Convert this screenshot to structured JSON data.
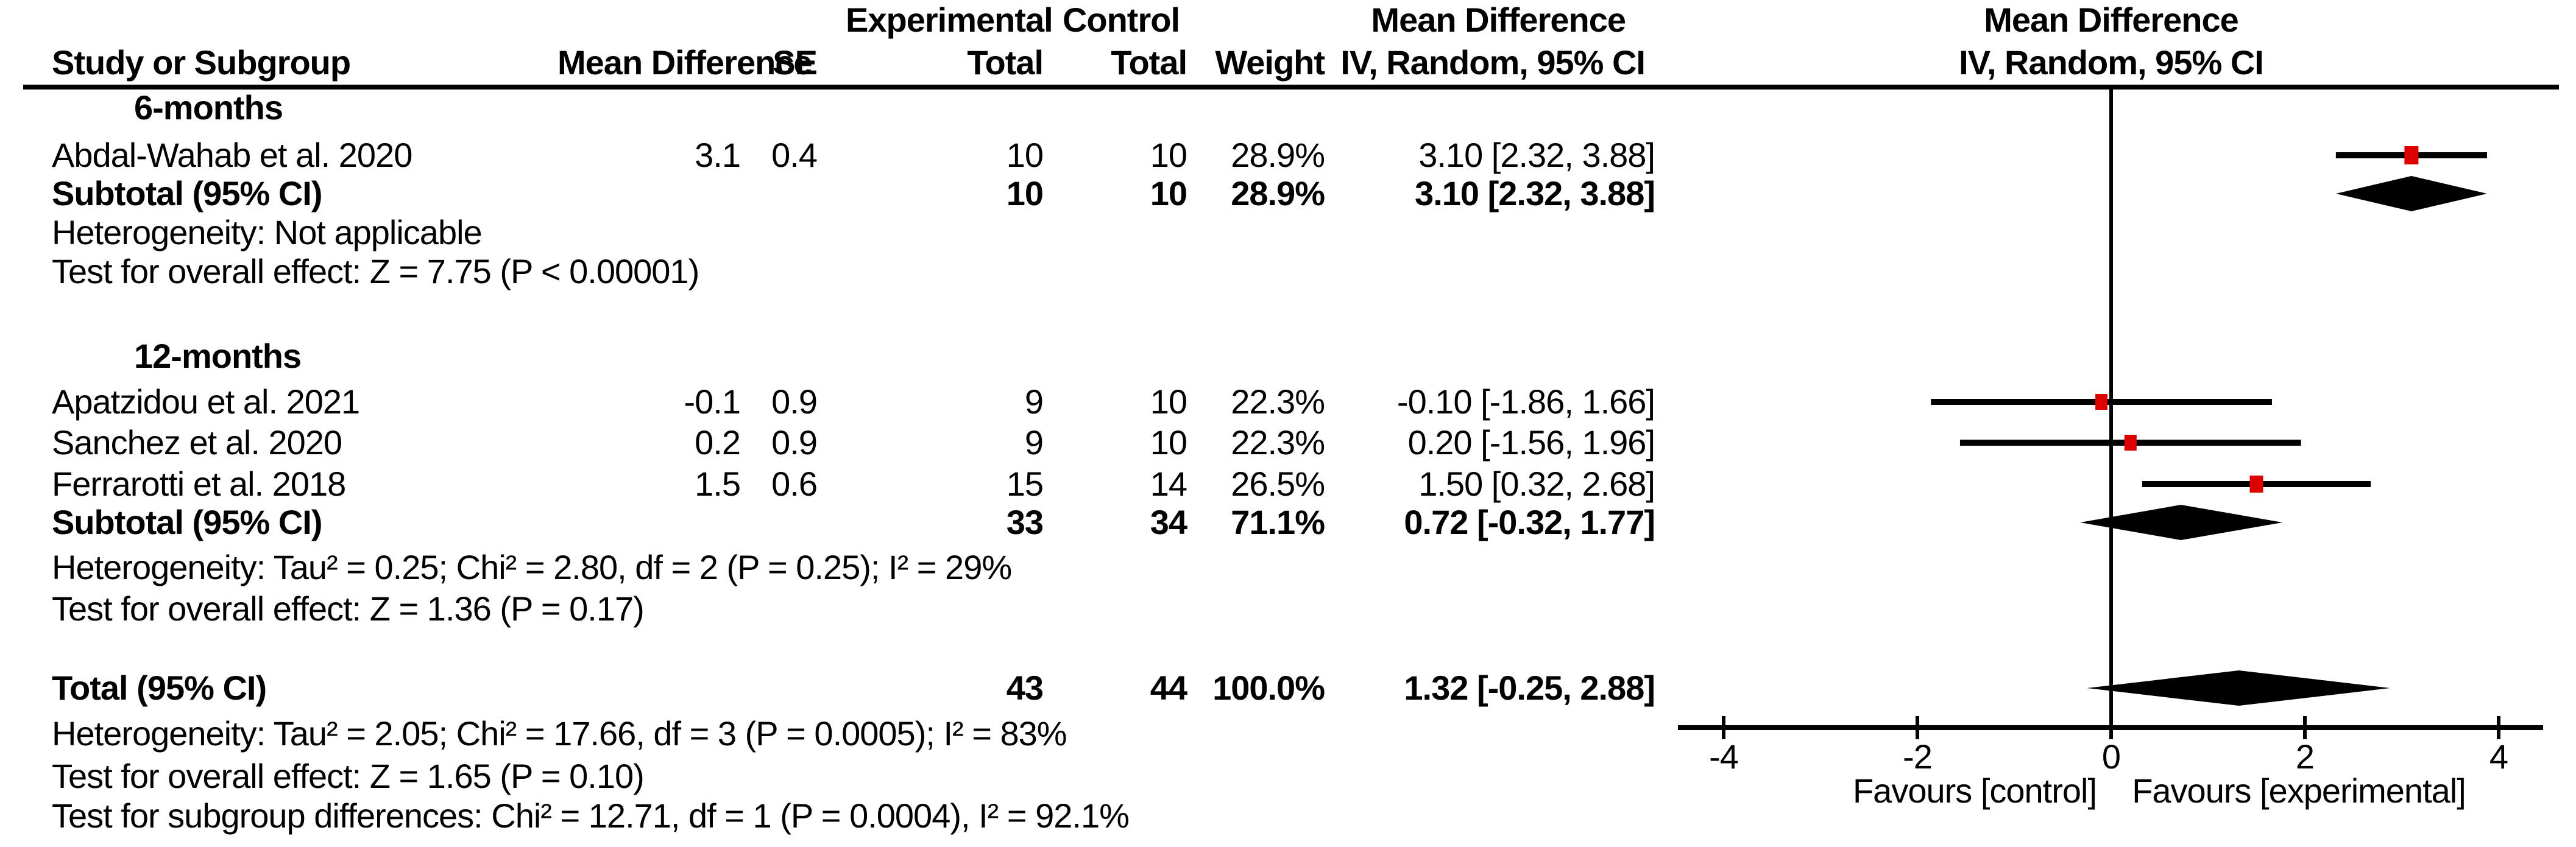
{
  "colors": {
    "text": "#000000",
    "marker": "#dd0000",
    "diamond": "#000000",
    "line": "#000000"
  },
  "columns": {
    "study": "Study or Subgroup",
    "md": "Mean Difference",
    "se": "SE",
    "group_experimental": "Experimental",
    "group_control": "Control",
    "total": "Total",
    "weight": "Weight",
    "ci": "IV, Random, 95% CI",
    "ci_group": "Mean Difference"
  },
  "plot_header": {
    "line1": "Mean Difference",
    "line2": "IV, Random, 95% CI"
  },
  "chart_data": {
    "type": "forest",
    "effect_measure": "Mean Difference",
    "model": "IV, Random, 95% CI",
    "axis": {
      "min": -4,
      "max": 4,
      "ticks": [
        -4,
        -2,
        0,
        2,
        4
      ],
      "zero_line": 0,
      "label_left": "Favours [control]",
      "label_right": "Favours [experimental]"
    },
    "sections": [
      {
        "label": "6-months",
        "rows": [
          {
            "study": "Abdal-Wahab et al. 2020",
            "md_text": "3.1",
            "se_text": "0.4",
            "exp_text": "10",
            "ctrl_text": "10",
            "weight_text": "28.9%",
            "ci_text": "3.10 [2.32, 3.88]",
            "estimate": 3.1,
            "lo": 2.32,
            "hi": 3.88,
            "weight_pct": 28.9
          }
        ],
        "subtotal": {
          "label": "Subtotal (95% CI)",
          "exp_text": "10",
          "ctrl_text": "10",
          "weight_text": "28.9%",
          "ci_text": "3.10 [2.32, 3.88]",
          "estimate": 3.1,
          "lo": 2.32,
          "hi": 3.88
        },
        "heterogeneity": "Heterogeneity: Not applicable",
        "overall_effect": "Test for overall effect: Z = 7.75 (P < 0.00001)"
      },
      {
        "label": "12-months",
        "rows": [
          {
            "study": "Apatzidou et al. 2021",
            "md_text": "-0.1",
            "se_text": "0.9",
            "exp_text": "9",
            "ctrl_text": "10",
            "weight_text": "22.3%",
            "ci_text": "-0.10 [-1.86, 1.66]",
            "estimate": -0.1,
            "lo": -1.86,
            "hi": 1.66,
            "weight_pct": 22.3
          },
          {
            "study": "Sanchez et al. 2020",
            "md_text": "0.2",
            "se_text": "0.9",
            "exp_text": "9",
            "ctrl_text": "10",
            "weight_text": "22.3%",
            "ci_text": "0.20 [-1.56, 1.96]",
            "estimate": 0.2,
            "lo": -1.56,
            "hi": 1.96,
            "weight_pct": 22.3
          },
          {
            "study": "Ferrarotti et al. 2018",
            "md_text": "1.5",
            "se_text": "0.6",
            "exp_text": "15",
            "ctrl_text": "14",
            "weight_text": "26.5%",
            "ci_text": "1.50 [0.32, 2.68]",
            "estimate": 1.5,
            "lo": 0.32,
            "hi": 2.68,
            "weight_pct": 26.5
          }
        ],
        "subtotal": {
          "label": "Subtotal (95% CI)",
          "exp_text": "33",
          "ctrl_text": "34",
          "weight_text": "71.1%",
          "ci_text": "0.72 [-0.32, 1.77]",
          "estimate": 0.72,
          "lo": -0.32,
          "hi": 1.77
        },
        "heterogeneity": "Heterogeneity: Tau² = 0.25; Chi² = 2.80, df = 2 (P = 0.25); I² = 29%",
        "overall_effect": "Test for overall effect: Z = 1.36 (P = 0.17)"
      }
    ],
    "total": {
      "label": "Total (95% CI)",
      "exp_text": "43",
      "ctrl_text": "44",
      "weight_text": "100.0%",
      "ci_text": "1.32 [-0.25, 2.88]",
      "estimate": 1.32,
      "lo": -0.25,
      "hi": 2.88,
      "heterogeneity": "Heterogeneity: Tau² = 2.05; Chi² = 17.66, df = 3 (P = 0.0005); I² = 83%",
      "overall_effect": "Test for overall effect: Z = 1.65 (P = 0.10)",
      "subgroup_differences": "Test for subgroup differences: Chi² = 12.71, df = 1 (P = 0.0004), I² = 92.1%"
    }
  }
}
